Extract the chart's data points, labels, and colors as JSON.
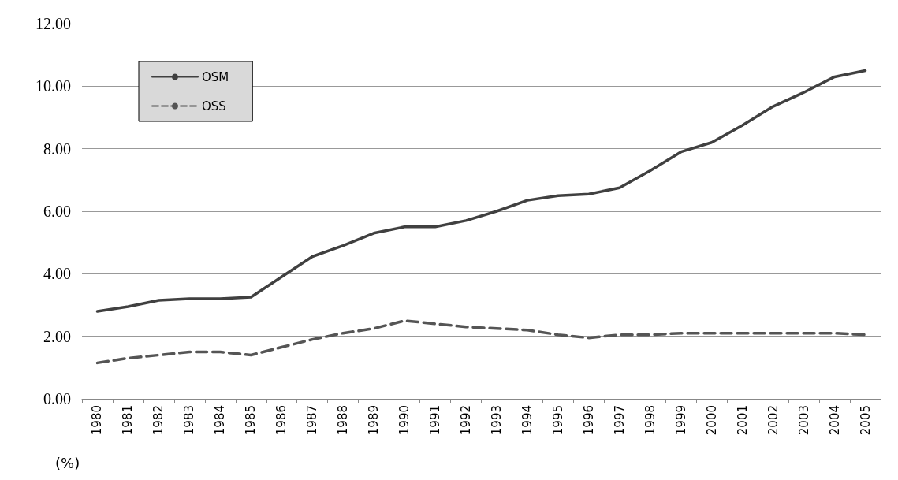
{
  "chart_data": {
    "type": "line",
    "ylabel": "(%)",
    "categories": [
      "1980",
      "1981",
      "1982",
      "1983",
      "1984",
      "1985",
      "1986",
      "1987",
      "1988",
      "1989",
      "1990",
      "1991",
      "1992",
      "1993",
      "1994",
      "1995",
      "1996",
      "1997",
      "1998",
      "1999",
      "2000",
      "2001",
      "2002",
      "2003",
      "2004",
      "2005"
    ],
    "series": [
      {
        "name": "OSM",
        "color": "#404040",
        "line_style": "solid",
        "values": [
          2.8,
          2.95,
          3.15,
          3.2,
          3.2,
          3.25,
          3.9,
          4.55,
          4.9,
          5.3,
          5.5,
          5.5,
          5.7,
          6.0,
          6.35,
          6.5,
          6.55,
          6.75,
          7.3,
          7.9,
          8.2,
          8.75,
          9.35,
          9.8,
          10.3,
          10.5
        ]
      },
      {
        "name": "OSS",
        "color": "#555555",
        "line_style": "dashed",
        "values": [
          1.15,
          1.3,
          1.4,
          1.5,
          1.5,
          1.4,
          1.65,
          1.9,
          2.1,
          2.25,
          2.5,
          2.4,
          2.3,
          2.25,
          2.2,
          2.05,
          1.95,
          2.05,
          2.05,
          2.1,
          2.1,
          2.1,
          2.1,
          2.1,
          2.1,
          2.05
        ]
      }
    ],
    "ylim": [
      0,
      12
    ],
    "yticks": [
      {
        "value": 0,
        "label": "0.00"
      },
      {
        "value": 2,
        "label": "2.00"
      },
      {
        "value": 4,
        "label": "4.00"
      },
      {
        "value": 6,
        "label": "6.00"
      },
      {
        "value": 8,
        "label": "8.00"
      },
      {
        "value": 10,
        "label": "10.00"
      },
      {
        "value": 12,
        "label": "12.00"
      }
    ],
    "grid": "y",
    "legend": "top left",
    "marker": "none"
  }
}
